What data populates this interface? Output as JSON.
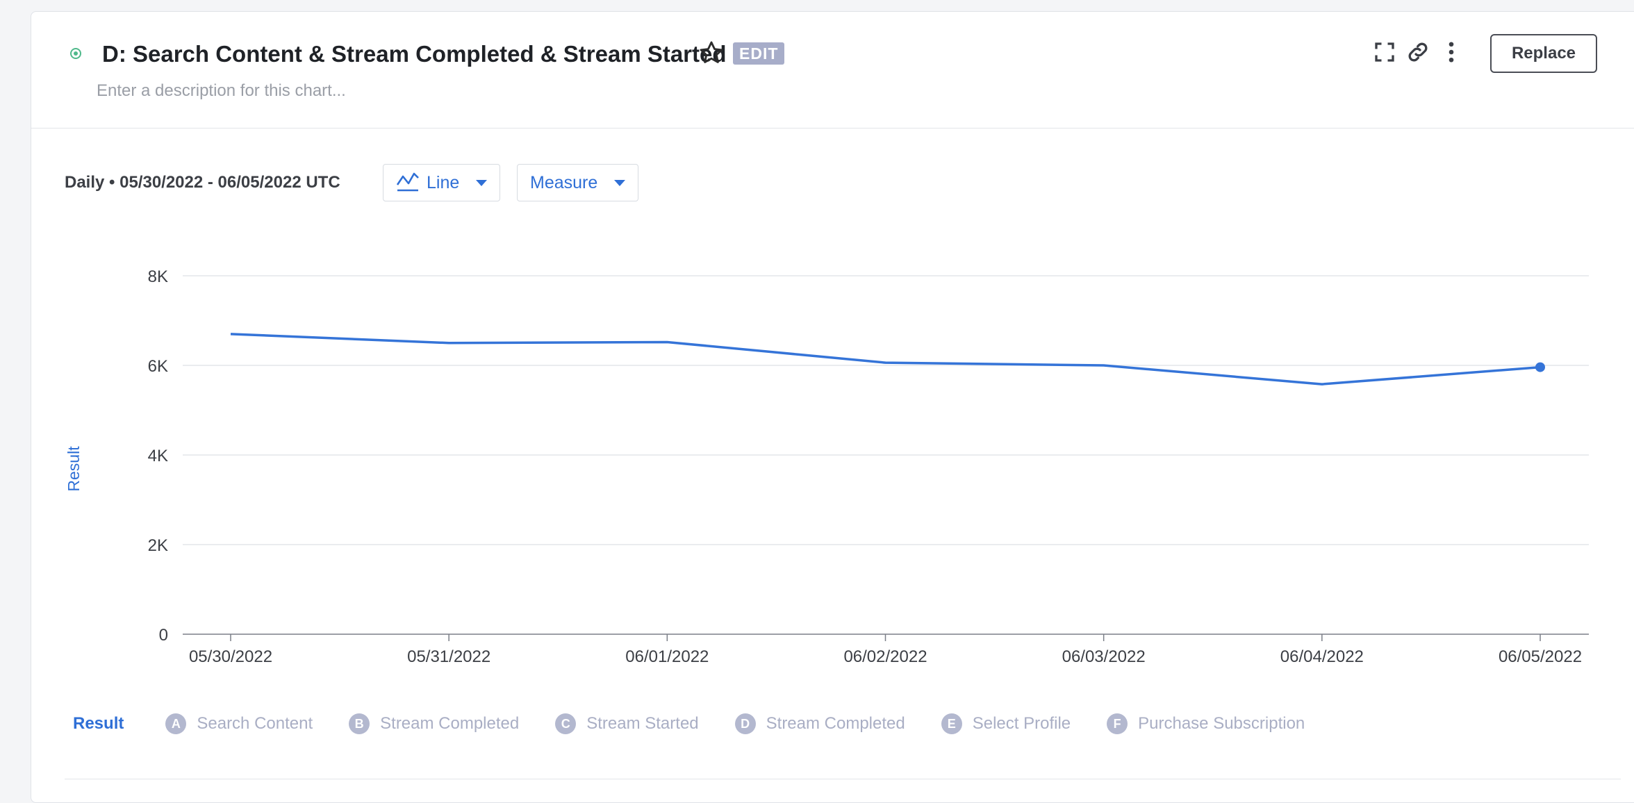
{
  "header": {
    "title": "D: Search Content & Stream Completed & Stream Started",
    "edit_label": "EDIT",
    "description_placeholder": "Enter a description for this chart...",
    "replace_label": "Replace"
  },
  "controls": {
    "granularity": "Daily •",
    "date_range": "05/30/2022 - 06/05/2022 UTC",
    "chart_type_label": "Line",
    "measure_label": "Measure"
  },
  "chart_data": {
    "type": "line",
    "ylabel": "Result",
    "ylim": [
      0,
      8000
    ],
    "yticks": [
      0,
      2000,
      4000,
      6000,
      8000
    ],
    "ytick_labels": [
      "0",
      "2K",
      "4K",
      "6K",
      "8K"
    ],
    "categories": [
      "05/30/2022",
      "05/31/2022",
      "06/01/2022",
      "06/02/2022",
      "06/03/2022",
      "06/04/2022",
      "06/05/2022"
    ],
    "series": [
      {
        "values": [
          6700,
          6500,
          6520,
          6060,
          6000,
          5580,
          5960
        ]
      }
    ],
    "grid": true,
    "line_color": "#3574d8"
  },
  "legend": {
    "active": "Result",
    "items": [
      {
        "letter": "A",
        "label": "Search Content"
      },
      {
        "letter": "B",
        "label": "Stream Completed"
      },
      {
        "letter": "C",
        "label": "Stream Started"
      },
      {
        "letter": "D",
        "label": "Stream Completed"
      },
      {
        "letter": "E",
        "label": "Select Profile"
      },
      {
        "letter": "F",
        "label": "Purchase Subscription"
      }
    ]
  }
}
